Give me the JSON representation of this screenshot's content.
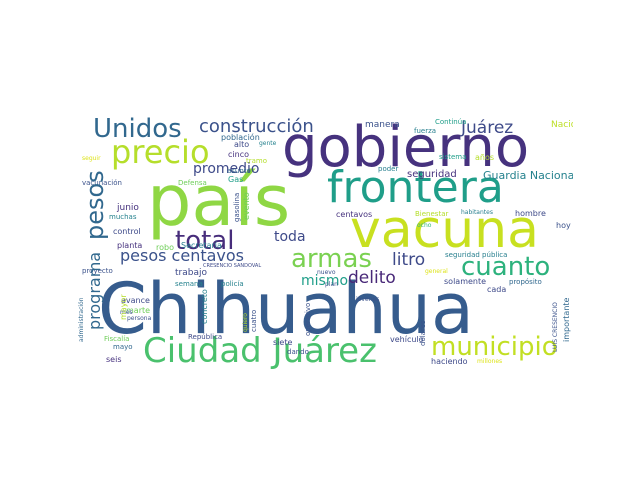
{
  "words": {
    "chihuahua": "Chihuahua",
    "pais": "país",
    "gobierno": "gobierno",
    "vacuna": "vacuna",
    "frontera": "frontera",
    "ciudad_juarez": "Ciudad Juárez",
    "precio": "precio",
    "unidos": "Unidos",
    "construccion": "construcción",
    "pesos": "pesos",
    "total": "total",
    "armas": "armas",
    "cuanto": "cuanto",
    "municipio": "municipio",
    "pesos_centavos": "pesos centavos",
    "programa": "programa",
    "juarez": "Juárez",
    "guardia_nacional": "Guardia Nacional",
    "delito": "delito",
    "litro": "litro",
    "mismo": "mismo",
    "toda": "toda",
    "promedio": "promedio",
    "seguridad": "seguridad",
    "manera": "manera",
    "nacional": "Nacional",
    "poblacion": "población",
    "alto": "alto",
    "cinco": "cinco",
    "gente": "gente",
    "fuerza": "fuerza",
    "continua": "Continúa",
    "sistema": "sistema",
    "anos": "años",
    "poder": "poder",
    "seguir": "seguir",
    "vacunacion": "vacunación",
    "defensa": "Defensa",
    "asunto": "asunto",
    "gas": "Gas",
    "gasolina": "gasolina",
    "evento": "evento",
    "junio": "junio",
    "muchas": "muchas",
    "control": "control",
    "planta": "planta",
    "robo": "robo",
    "secretaria": "Secretaría",
    "centavos": "centavos",
    "bienestar": "Bienestar",
    "habitantes": "habitantes",
    "hombre": "hombre",
    "ocho": "ocho",
    "hoy": "hoy",
    "trabajo": "trabajo",
    "semana": "semana",
    "marte": "marte",
    "mayor": "mayor",
    "avance": "avance",
    "mes": "mes",
    "persona": "persona",
    "fiscalia": "Fiscalía",
    "mayo": "mayo",
    "seis": "seis",
    "administracion": "administración",
    "proyecto": "proyecto",
    "concreto": "concreto",
    "policia": "policía",
    "tramo": "tramo",
    "republica": "República",
    "siete": "siete",
    "dando": "dando",
    "cuatro": "cuatro",
    "quiero": "quiero",
    "nuevo": "nuevo",
    "operativo": "operativo",
    "plan": "plan",
    "jovenes": "jóvenes",
    "vehiculo": "vehículo",
    "dolares": "dólares",
    "haciendo": "haciendo",
    "millones": "millones",
    "general": "general",
    "solamente": "solamente",
    "cada": "cada",
    "proposito": "propósito",
    "importante": "importante",
    "luis_crescencio": "LUIS CRESENCIO",
    "seguridad_publica": "seguridad pública",
    "crescencio_sandoval": "CRESENCIO SANDOVAL"
  },
  "colors": {
    "background": "#ffffff",
    "dark_purple": "#46327e",
    "indigo": "#3b528b",
    "blue": "#365c8d",
    "teal_blue": "#31688e",
    "teal": "#277f8e",
    "green_teal": "#1f9e89",
    "green": "#35b779",
    "light_green": "#6ece58",
    "lime": "#b5de2b",
    "yellow": "#dde318"
  }
}
